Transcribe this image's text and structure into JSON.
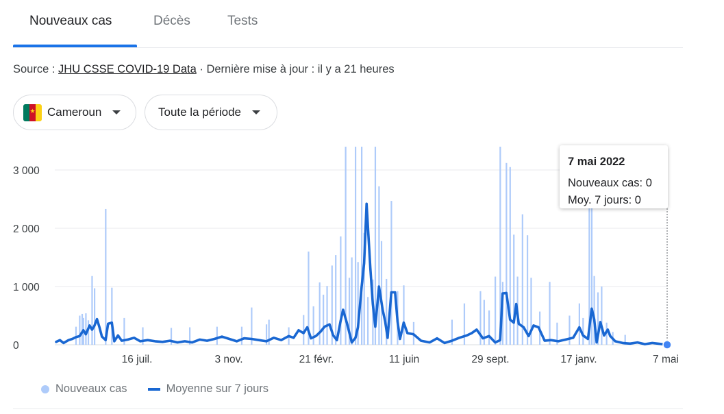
{
  "tabs": [
    {
      "label": "Nouveaux cas",
      "active": true
    },
    {
      "label": "Décès",
      "active": false
    },
    {
      "label": "Tests",
      "active": false
    }
  ],
  "source": {
    "prefix": "Source : ",
    "link_text": "JHU CSSE COVID-19 Data",
    "suffix": " · Dernière mise à jour : il y a 21 heures"
  },
  "filters": {
    "country": "Cameroun",
    "country_flag_colors": [
      "#007a5e",
      "#ce1126",
      "#fcd116"
    ],
    "period": "Toute la période"
  },
  "tooltip": {
    "date": "7 mai 2022",
    "cases_line": "Nouveaux cas: 0",
    "avg_line": "Moy. 7 jours: 0"
  },
  "legend": {
    "bars_label": "Nouveaux cas",
    "line_label": "Moyenne sur 7 jours"
  },
  "chart_data": {
    "type": "bar",
    "x_tick_labels": [
      "16 juil.",
      "3 nov.",
      "21 févr.",
      "11 juin",
      "29 sept.",
      "17 janv.",
      "7 mai"
    ],
    "y_tick_labels": [
      "0",
      "1 000",
      "2 000",
      "3 000"
    ],
    "ylim": [
      0,
      3400
    ],
    "grid": true,
    "colors": {
      "bars": "#aecbfa",
      "line": "#1967d2",
      "grid": "#e8eaed",
      "axis": "#dadce0"
    },
    "series": [
      {
        "name": "Nouveaux cas",
        "kind": "bar",
        "values": [
          [
            16,
            310
          ],
          [
            19,
            500
          ],
          [
            21,
            530
          ],
          [
            22,
            460
          ],
          [
            24,
            540
          ],
          [
            26,
            420
          ],
          [
            29,
            1180
          ],
          [
            31,
            970
          ],
          [
            40,
            2330
          ],
          [
            45,
            980
          ],
          [
            55,
            460
          ],
          [
            70,
            300
          ],
          [
            93,
            290
          ],
          [
            108,
            300
          ],
          [
            130,
            310
          ],
          [
            150,
            310
          ],
          [
            158,
            640
          ],
          [
            170,
            350
          ],
          [
            172,
            430
          ],
          [
            188,
            300
          ],
          [
            200,
            510
          ],
          [
            204,
            1600
          ],
          [
            208,
            660
          ],
          [
            213,
            1070
          ],
          [
            216,
            860
          ],
          [
            219,
            1010
          ],
          [
            223,
            1360
          ],
          [
            226,
            1540
          ],
          [
            230,
            1860
          ],
          [
            234,
            3400
          ],
          [
            237,
            1150
          ],
          [
            239,
            1500
          ],
          [
            242,
            3400
          ],
          [
            244,
            1420
          ],
          [
            247,
            3400
          ],
          [
            249,
            1920
          ],
          [
            252,
            820
          ],
          [
            256,
            1120
          ],
          [
            258,
            3400
          ],
          [
            261,
            2720
          ],
          [
            263,
            1780
          ],
          [
            267,
            1130
          ],
          [
            271,
            2470
          ],
          [
            276,
            920
          ],
          [
            281,
            1020
          ],
          [
            289,
            390
          ],
          [
            320,
            430
          ],
          [
            330,
            710
          ],
          [
            343,
            920
          ],
          [
            346,
            770
          ],
          [
            350,
            590
          ],
          [
            355,
            1170
          ],
          [
            359,
            3400
          ],
          [
            361,
            1080
          ],
          [
            364,
            3120
          ],
          [
            367,
            3050
          ],
          [
            370,
            1890
          ],
          [
            373,
            1170
          ],
          [
            377,
            2240
          ],
          [
            381,
            1880
          ],
          [
            384,
            1150
          ],
          [
            391,
            570
          ],
          [
            399,
            1080
          ],
          [
            405,
            380
          ],
          [
            415,
            500
          ],
          [
            423,
            710
          ],
          [
            426,
            460
          ],
          [
            431,
            3120
          ],
          [
            433,
            3120
          ],
          [
            435,
            1180
          ],
          [
            438,
            900
          ],
          [
            441,
            1000
          ],
          [
            445,
            380
          ],
          [
            450,
            220
          ],
          [
            460,
            170
          ]
        ]
      },
      {
        "name": "Moyenne sur 7 jours",
        "kind": "line",
        "values": [
          [
            0,
            50
          ],
          [
            3,
            80
          ],
          [
            6,
            30
          ],
          [
            10,
            80
          ],
          [
            13,
            100
          ],
          [
            16,
            130
          ],
          [
            19,
            150
          ],
          [
            22,
            250
          ],
          [
            24,
            180
          ],
          [
            27,
            330
          ],
          [
            29,
            260
          ],
          [
            31,
            330
          ],
          [
            33,
            440
          ],
          [
            35,
            300
          ],
          [
            37,
            140
          ],
          [
            40,
            80
          ],
          [
            42,
            360
          ],
          [
            45,
            380
          ],
          [
            47,
            60
          ],
          [
            50,
            160
          ],
          [
            53,
            70
          ],
          [
            58,
            90
          ],
          [
            63,
            120
          ],
          [
            68,
            60
          ],
          [
            74,
            80
          ],
          [
            80,
            60
          ],
          [
            86,
            50
          ],
          [
            92,
            70
          ],
          [
            98,
            40
          ],
          [
            104,
            60
          ],
          [
            110,
            40
          ],
          [
            116,
            90
          ],
          [
            122,
            70
          ],
          [
            128,
            100
          ],
          [
            134,
            140
          ],
          [
            140,
            100
          ],
          [
            146,
            60
          ],
          [
            152,
            110
          ],
          [
            158,
            100
          ],
          [
            164,
            80
          ],
          [
            170,
            60
          ],
          [
            176,
            120
          ],
          [
            182,
            80
          ],
          [
            188,
            150
          ],
          [
            192,
            120
          ],
          [
            196,
            250
          ],
          [
            200,
            200
          ],
          [
            203,
            300
          ],
          [
            206,
            110
          ],
          [
            210,
            150
          ],
          [
            214,
            230
          ],
          [
            217,
            310
          ],
          [
            221,
            350
          ],
          [
            224,
            160
          ],
          [
            227,
            80
          ],
          [
            230,
            410
          ],
          [
            232,
            600
          ],
          [
            235,
            380
          ],
          [
            239,
            40
          ],
          [
            242,
            120
          ],
          [
            244,
            300
          ],
          [
            247,
            1000
          ],
          [
            249,
            1400
          ],
          [
            251,
            2420
          ],
          [
            254,
            1330
          ],
          [
            256,
            700
          ],
          [
            258,
            310
          ],
          [
            261,
            1000
          ],
          [
            264,
            600
          ],
          [
            266,
            400
          ],
          [
            268,
            120
          ],
          [
            271,
            900
          ],
          [
            274,
            900
          ],
          [
            276,
            400
          ],
          [
            278,
            100
          ],
          [
            281,
            380
          ],
          [
            284,
            200
          ],
          [
            289,
            180
          ],
          [
            295,
            70
          ],
          [
            302,
            40
          ],
          [
            308,
            110
          ],
          [
            314,
            30
          ],
          [
            320,
            70
          ],
          [
            326,
            120
          ],
          [
            332,
            160
          ],
          [
            336,
            200
          ],
          [
            340,
            260
          ],
          [
            345,
            110
          ],
          [
            350,
            150
          ],
          [
            355,
            40
          ],
          [
            359,
            80
          ],
          [
            361,
            880
          ],
          [
            364,
            890
          ],
          [
            367,
            430
          ],
          [
            370,
            380
          ],
          [
            372,
            700
          ],
          [
            374,
            360
          ],
          [
            378,
            300
          ],
          [
            382,
            150
          ],
          [
            386,
            330
          ],
          [
            390,
            300
          ],
          [
            395,
            70
          ],
          [
            400,
            80
          ],
          [
            406,
            60
          ],
          [
            412,
            90
          ],
          [
            418,
            120
          ],
          [
            423,
            300
          ],
          [
            426,
            160
          ],
          [
            430,
            100
          ],
          [
            433,
            620
          ],
          [
            435,
            440
          ],
          [
            437,
            40
          ],
          [
            440,
            390
          ],
          [
            443,
            160
          ],
          [
            446,
            260
          ],
          [
            448,
            150
          ],
          [
            452,
            60
          ],
          [
            458,
            30
          ],
          [
            464,
            20
          ],
          [
            470,
            40
          ],
          [
            476,
            10
          ],
          [
            482,
            30
          ],
          [
            488,
            15
          ],
          [
            494,
            0
          ]
        ]
      }
    ]
  }
}
